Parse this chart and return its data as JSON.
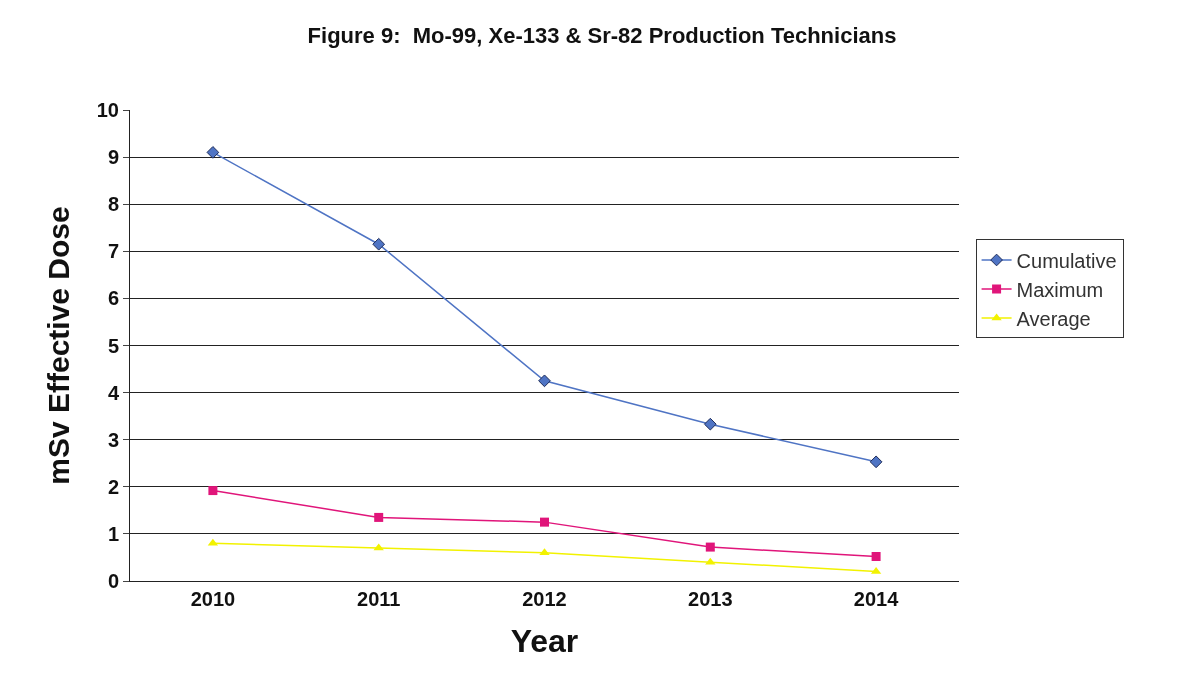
{
  "chart_data": {
    "type": "line",
    "title": "Figure 9:  Mo-99, Xe-133 & Sr-82 Production Technicians",
    "xlabel": "Year",
    "ylabel": "mSv Effective Dose",
    "categories": [
      "2010",
      "2011",
      "2012",
      "2013",
      "2014"
    ],
    "series": [
      {
        "name": "Cumulative",
        "color": "#4f74c4",
        "marker": "diamond",
        "values": [
          9.1,
          7.15,
          4.25,
          3.33,
          2.53
        ]
      },
      {
        "name": "Maximum",
        "color": "#e0157a",
        "marker": "square",
        "values": [
          1.92,
          1.35,
          1.25,
          0.72,
          0.52
        ]
      },
      {
        "name": "Average",
        "color": "#f2f200",
        "marker": "triangle",
        "values": [
          0.8,
          0.7,
          0.6,
          0.4,
          0.2
        ]
      }
    ],
    "ylim": [
      0,
      10
    ],
    "yticks": [
      0,
      1,
      2,
      3,
      4,
      5,
      6,
      7,
      8,
      9,
      10
    ],
    "grid": "y",
    "legend": "right",
    "line_style": "solid"
  }
}
